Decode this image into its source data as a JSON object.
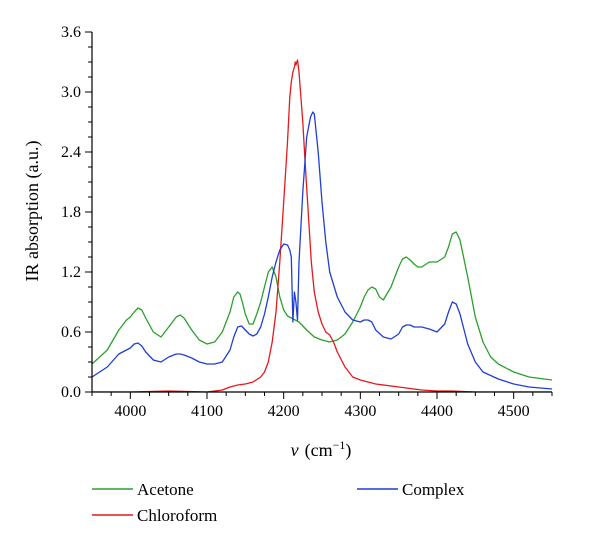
{
  "chart_data": {
    "type": "line",
    "xlabel_var": "ν",
    "xlabel_unit": "(cm",
    "xlabel_exp": "−1",
    "xlabel_close": ")",
    "ylabel": "IR absorption (a.u.)",
    "xlim": [
      3950,
      4550
    ],
    "ylim": [
      0,
      3.6
    ],
    "x_ticks": [
      4000,
      4100,
      4200,
      4300,
      4400,
      4500
    ],
    "x_tick_labels": [
      "4000",
      "4100",
      "4200",
      "4300",
      "4400",
      "4500"
    ],
    "y_ticks": [
      0,
      0.6,
      1.2,
      1.8,
      2.4,
      3.0,
      3.6
    ],
    "y_tick_labels": [
      "0.0",
      "0.6",
      "1.2",
      "1.8",
      "2.4",
      "3.0",
      "3.6"
    ],
    "grid": false,
    "legend_position": "bottom",
    "series": [
      {
        "name": "Acetone",
        "color": "#2ca02c",
        "x": [
          3950,
          3970,
          3985,
          3995,
          4000,
          4005,
          4010,
          4015,
          4020,
          4030,
          4040,
          4050,
          4060,
          4065,
          4070,
          4080,
          4090,
          4100,
          4110,
          4120,
          4130,
          4135,
          4140,
          4143,
          4146,
          4150,
          4155,
          4160,
          4165,
          4170,
          4175,
          4180,
          4185,
          4190,
          4195,
          4200,
          4205,
          4210,
          4220,
          4230,
          4240,
          4250,
          4260,
          4270,
          4280,
          4290,
          4300,
          4305,
          4310,
          4315,
          4320,
          4325,
          4330,
          4340,
          4350,
          4355,
          4360,
          4365,
          4370,
          4375,
          4380,
          4390,
          4400,
          4410,
          4415,
          4420,
          4425,
          4430,
          4440,
          4450,
          4460,
          4470,
          4480,
          4500,
          4520,
          4550
        ],
        "y": [
          0.28,
          0.42,
          0.62,
          0.72,
          0.75,
          0.8,
          0.84,
          0.82,
          0.74,
          0.6,
          0.55,
          0.65,
          0.75,
          0.77,
          0.74,
          0.62,
          0.52,
          0.48,
          0.5,
          0.6,
          0.8,
          0.95,
          1.0,
          0.98,
          0.9,
          0.78,
          0.68,
          0.68,
          0.78,
          0.9,
          1.05,
          1.2,
          1.25,
          1.15,
          0.95,
          0.82,
          0.76,
          0.74,
          0.7,
          0.62,
          0.55,
          0.52,
          0.5,
          0.52,
          0.58,
          0.7,
          0.85,
          0.95,
          1.02,
          1.05,
          1.03,
          0.95,
          0.92,
          1.05,
          1.25,
          1.33,
          1.35,
          1.32,
          1.28,
          1.25,
          1.25,
          1.3,
          1.3,
          1.35,
          1.45,
          1.58,
          1.6,
          1.52,
          1.15,
          0.75,
          0.5,
          0.35,
          0.28,
          0.2,
          0.15,
          0.12
        ]
      },
      {
        "name": "Chloroform",
        "color": "#e41a1c",
        "x": [
          3950,
          4000,
          4050,
          4100,
          4120,
          4130,
          4140,
          4150,
          4160,
          4170,
          4175,
          4180,
          4185,
          4190,
          4195,
          4200,
          4205,
          4208,
          4210,
          4212,
          4214,
          4215,
          4216,
          4218,
          4220,
          4222,
          4225,
          4228,
          4232,
          4236,
          4240,
          4245,
          4250,
          4255,
          4260,
          4265,
          4270,
          4280,
          4290,
          4300,
          4320,
          4350,
          4380,
          4400,
          4420,
          4450,
          4500,
          4550
        ],
        "y": [
          0.0,
          0.0,
          0.01,
          0.0,
          0.02,
          0.05,
          0.07,
          0.08,
          0.1,
          0.15,
          0.2,
          0.3,
          0.5,
          0.8,
          1.3,
          1.9,
          2.5,
          2.95,
          3.1,
          3.2,
          3.25,
          3.3,
          3.27,
          3.32,
          3.2,
          3.0,
          2.7,
          2.3,
          1.8,
          1.3,
          1.0,
          0.8,
          0.68,
          0.6,
          0.57,
          0.5,
          0.4,
          0.25,
          0.15,
          0.12,
          0.08,
          0.05,
          0.02,
          0.01,
          0.01,
          0.0,
          0.0,
          0.0
        ]
      },
      {
        "name": "Complex",
        "color": "#1f3fd0",
        "x": [
          3950,
          3970,
          3985,
          3995,
          4000,
          4005,
          4010,
          4015,
          4020,
          4030,
          4040,
          4050,
          4060,
          4065,
          4070,
          4080,
          4090,
          4100,
          4110,
          4120,
          4130,
          4135,
          4140,
          4145,
          4150,
          4155,
          4160,
          4165,
          4170,
          4175,
          4180,
          4185,
          4190,
          4195,
          4200,
          4205,
          4208,
          4210,
          4212,
          4214,
          4216,
          4218,
          4220,
          4225,
          4230,
          4235,
          4238,
          4240,
          4245,
          4250,
          4255,
          4260,
          4270,
          4280,
          4290,
          4300,
          4305,
          4310,
          4315,
          4320,
          4330,
          4340,
          4350,
          4355,
          4360,
          4365,
          4370,
          4380,
          4390,
          4400,
          4410,
          4415,
          4420,
          4425,
          4430,
          4440,
          4450,
          4460,
          4480,
          4500,
          4520,
          4550
        ],
        "y": [
          0.15,
          0.25,
          0.38,
          0.42,
          0.44,
          0.48,
          0.49,
          0.46,
          0.4,
          0.32,
          0.3,
          0.35,
          0.38,
          0.38,
          0.37,
          0.34,
          0.3,
          0.28,
          0.28,
          0.3,
          0.42,
          0.55,
          0.65,
          0.66,
          0.62,
          0.58,
          0.56,
          0.58,
          0.65,
          0.78,
          0.95,
          1.15,
          1.3,
          1.42,
          1.48,
          1.47,
          1.42,
          1.35,
          0.7,
          1.0,
          0.9,
          0.72,
          1.3,
          2.0,
          2.55,
          2.75,
          2.8,
          2.78,
          2.4,
          1.9,
          1.5,
          1.2,
          0.95,
          0.8,
          0.72,
          0.7,
          0.72,
          0.72,
          0.7,
          0.62,
          0.55,
          0.53,
          0.58,
          0.65,
          0.67,
          0.67,
          0.65,
          0.65,
          0.63,
          0.6,
          0.68,
          0.8,
          0.9,
          0.88,
          0.78,
          0.48,
          0.3,
          0.2,
          0.13,
          0.08,
          0.05,
          0.03
        ]
      }
    ]
  }
}
